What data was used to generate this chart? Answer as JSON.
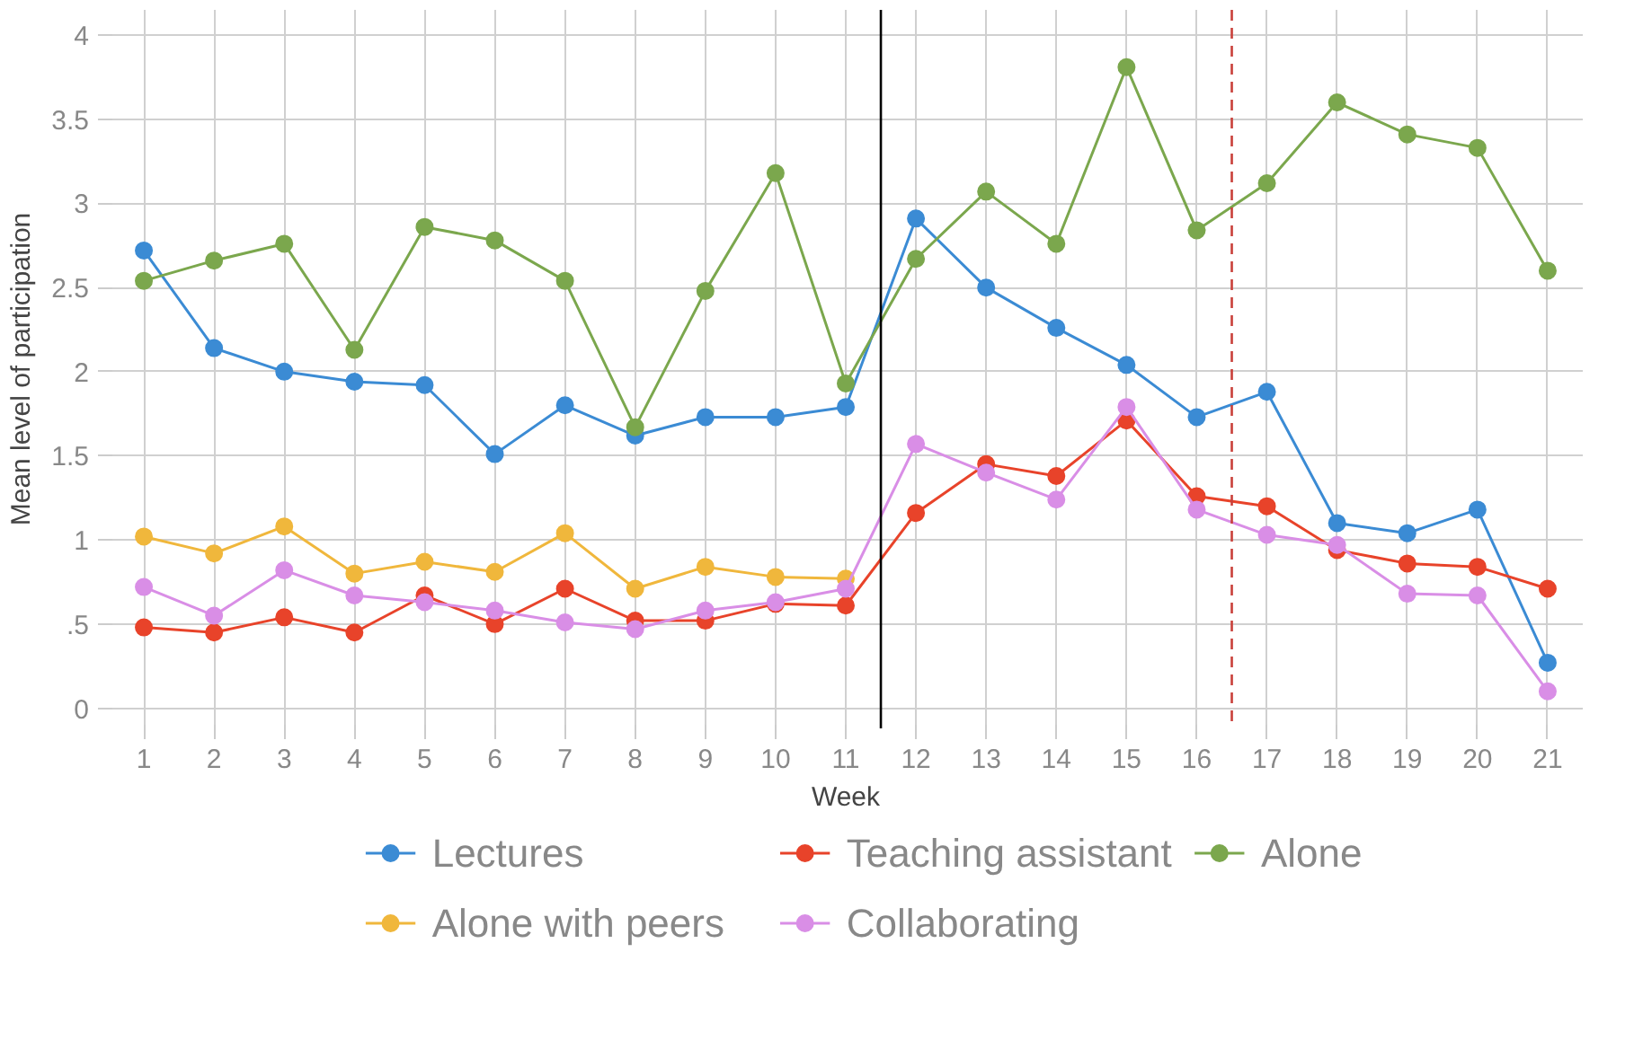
{
  "chart_data": {
    "type": "line",
    "xlabel": "Week",
    "ylabel": "Mean level of participation",
    "x": [
      1,
      2,
      3,
      4,
      5,
      6,
      7,
      8,
      9,
      10,
      11,
      12,
      13,
      14,
      15,
      16,
      17,
      18,
      19,
      20,
      21
    ],
    "xlim": [
      0.5,
      21.5
    ],
    "xticks": [
      1,
      2,
      3,
      4,
      5,
      6,
      7,
      8,
      9,
      10,
      11,
      12,
      13,
      14,
      15,
      16,
      17,
      18,
      19,
      20,
      21
    ],
    "ylim": [
      -0.12,
      4.15
    ],
    "yticks": [
      0,
      {
        "value": 0.5,
        "label": ".5"
      },
      1,
      1.5,
      2,
      2.5,
      3,
      3.5,
      4
    ],
    "grid": true,
    "legend": "bottom",
    "marker": "circle",
    "line_style": "solid",
    "series": [
      {
        "name": "Lectures",
        "color": "#3b8bd4",
        "values": [
          2.72,
          2.14,
          2.0,
          1.94,
          1.92,
          1.51,
          1.8,
          1.62,
          1.73,
          1.73,
          1.79,
          2.91,
          2.5,
          2.26,
          2.04,
          1.73,
          1.88,
          1.1,
          1.04,
          1.18,
          0.27
        ]
      },
      {
        "name": "Teaching assistant",
        "color": "#e8432a",
        "values": [
          0.48,
          0.45,
          0.54,
          0.45,
          0.67,
          0.5,
          0.71,
          0.52,
          0.52,
          0.62,
          0.61,
          1.16,
          1.45,
          1.38,
          1.71,
          1.26,
          1.2,
          0.94,
          0.86,
          0.84,
          0.71
        ]
      },
      {
        "name": "Alone",
        "color": "#7ba74d",
        "values": [
          2.54,
          2.66,
          2.76,
          2.13,
          2.86,
          2.78,
          2.54,
          1.67,
          2.48,
          3.18,
          1.93,
          2.67,
          3.07,
          2.76,
          3.81,
          2.84,
          3.12,
          3.6,
          3.41,
          3.33,
          2.6
        ]
      },
      {
        "name": "Alone with peers",
        "color": "#f0b73c",
        "values": [
          1.02,
          0.92,
          1.08,
          0.8,
          0.87,
          0.81,
          1.04,
          0.71,
          0.84,
          0.78,
          0.77,
          null,
          null,
          null,
          null,
          null,
          null,
          null,
          null,
          null,
          null
        ]
      },
      {
        "name": "Collaborating",
        "color": "#d98ee6",
        "values": [
          0.72,
          0.55,
          0.82,
          0.67,
          0.63,
          0.58,
          0.51,
          0.47,
          0.58,
          0.63,
          0.71,
          1.57,
          1.4,
          1.24,
          1.79,
          1.18,
          1.03,
          0.97,
          0.68,
          0.67,
          0.1
        ]
      }
    ],
    "ref_lines": [
      {
        "axis": "x",
        "value": 11.5,
        "color": "#000000",
        "line_style": "solid"
      },
      {
        "axis": "x",
        "value": 16.5,
        "color": "#c9403a",
        "line_style": "dashed"
      }
    ]
  }
}
